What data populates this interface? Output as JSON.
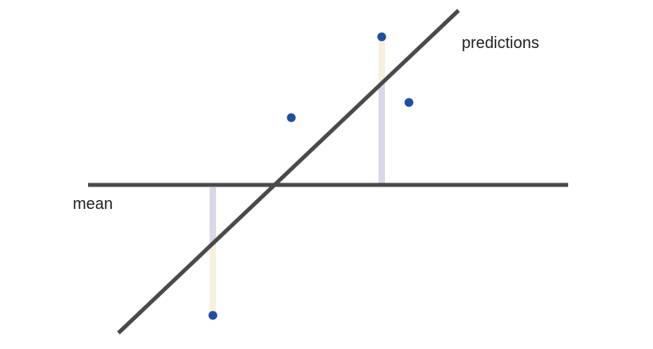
{
  "labels": {
    "mean": "mean",
    "predictions": "predictions"
  },
  "colors": {
    "line": "#4a4a4a",
    "point": "#1f4fa3",
    "residual_to_prediction": "#f6f0dc",
    "residual_to_mean": "#d8d8e6"
  },
  "diagram": {
    "description_lines": [
      "mean-line",
      "prediction-line"
    ],
    "points_count": 4,
    "residual_segments_count": 2
  }
}
